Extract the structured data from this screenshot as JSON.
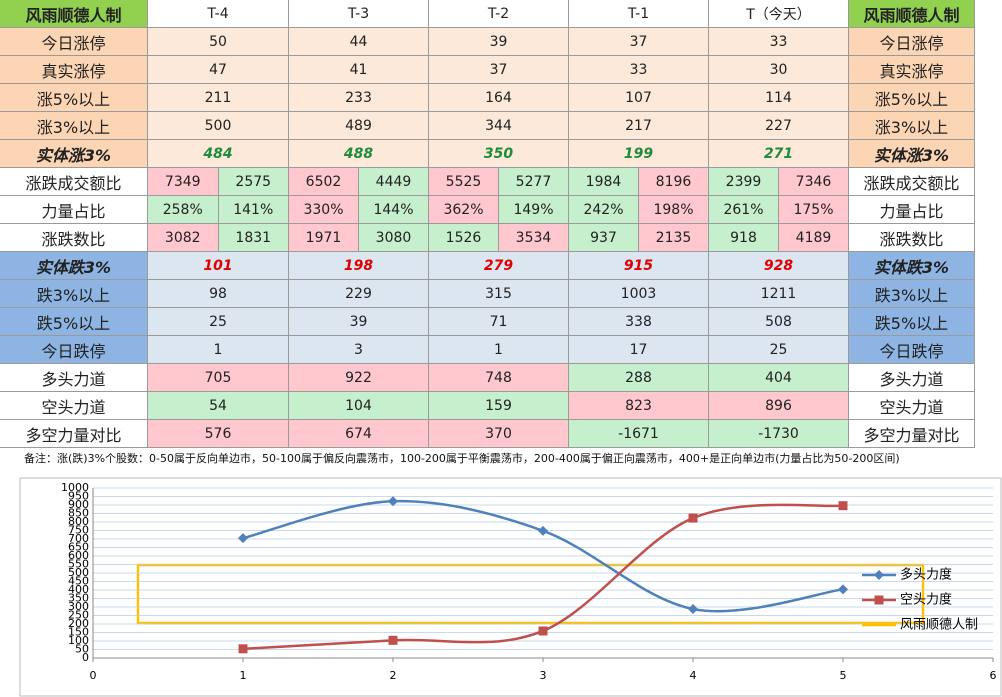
{
  "table": {
    "header": [
      "风雨顺德人制",
      "T-4",
      "T-3",
      "T-2",
      "T-1",
      "T（今天）",
      "风雨顺德人制"
    ],
    "rows": [
      {
        "label": "今日涨停",
        "style": "peach",
        "values": [
          50,
          44,
          39,
          37,
          33
        ]
      },
      {
        "label": "真实涨停",
        "style": "peach",
        "values": [
          47,
          41,
          37,
          33,
          30
        ]
      },
      {
        "label": "涨5%以上",
        "style": "peach",
        "values": [
          211,
          233,
          164,
          107,
          114
        ]
      },
      {
        "label": "涨3%以上",
        "style": "peach",
        "values": [
          500,
          489,
          344,
          217,
          227
        ]
      },
      {
        "label": "实体涨3%",
        "style": "peach-em",
        "text_color": "#1e8c3a",
        "values": [
          484,
          488,
          350,
          199,
          271
        ]
      },
      {
        "label": "涨跌成交额比",
        "style": "plain",
        "values": [
          7349,
          2575,
          6502,
          4449,
          5525,
          5277,
          1984,
          8196,
          2399,
          7346
        ],
        "colors": [
          "pink",
          "green",
          "pink",
          "green",
          "pink",
          "green",
          "green",
          "pink",
          "green",
          "pink"
        ]
      },
      {
        "label": "力量占比",
        "style": "plain",
        "values": [
          "258%",
          "141%",
          "330%",
          "144%",
          "362%",
          "149%",
          "242%",
          "198%",
          "261%",
          "175%"
        ],
        "colors": [
          "green",
          "green",
          "pink",
          "green",
          "pink",
          "green",
          "green",
          "pink",
          "green",
          "pink"
        ]
      },
      {
        "label": "涨跌数比",
        "style": "plain",
        "values": [
          3082,
          1831,
          1971,
          3080,
          1526,
          3534,
          937,
          2135,
          918,
          4189
        ],
        "colors": [
          "pink",
          "green",
          "pink",
          "green",
          "green",
          "pink",
          "green",
          "pink",
          "green",
          "pink"
        ]
      },
      {
        "label": "实体跌3%",
        "style": "blue-em",
        "text_color": "#e00000",
        "values": [
          101,
          198,
          279,
          915,
          928
        ]
      },
      {
        "label": "跌3%以上",
        "style": "blue",
        "values": [
          98,
          229,
          315,
          1003,
          1211
        ]
      },
      {
        "label": "跌5%以上",
        "style": "blue",
        "values": [
          25,
          39,
          71,
          338,
          508
        ]
      },
      {
        "label": "今日跌停",
        "style": "blue",
        "values": [
          1,
          3,
          1,
          17,
          25
        ]
      },
      {
        "label": "多头力道",
        "style": "plain",
        "values": [
          705,
          922,
          748,
          288,
          404
        ],
        "colors": [
          "pink",
          "pink",
          "pink",
          "green",
          "green"
        ]
      },
      {
        "label": "空头力道",
        "style": "plain",
        "values": [
          54,
          104,
          159,
          823,
          896
        ],
        "colors": [
          "green",
          "green",
          "green",
          "pink",
          "pink"
        ]
      },
      {
        "label": "多空力量对比",
        "style": "plain",
        "values": [
          576,
          674,
          370,
          -1671,
          -1730
        ],
        "colors": [
          "pink",
          "pink",
          "pink",
          "green",
          "green"
        ]
      }
    ],
    "note": "备注：涨(跌)3%个股数：0-50属于反向单边市，50-100属于偏反向震荡市，100-200属于平衡震荡市，200-400属于偏正向震荡市，400+是正向单边市(力量占比为50-200区间)"
  },
  "chart_data": {
    "type": "line",
    "x": [
      1,
      2,
      3,
      4,
      5
    ],
    "xlim": [
      0,
      6
    ],
    "xticks": [
      0,
      1,
      2,
      3,
      4,
      5,
      6
    ],
    "ylim": [
      0,
      1000
    ],
    "yticks": [
      0,
      50,
      100,
      150,
      200,
      250,
      300,
      350,
      400,
      450,
      500,
      550,
      600,
      650,
      700,
      750,
      800,
      850,
      900,
      950,
      1000
    ],
    "grid": true,
    "series": [
      {
        "name": "多头力度",
        "color": "#4f81bd",
        "marker": "diamond",
        "values": [
          705,
          922,
          748,
          288,
          404
        ]
      },
      {
        "name": "空头力度",
        "color": "#c0504d",
        "marker": "square",
        "values": [
          54,
          104,
          159,
          823,
          896
        ]
      },
      {
        "name": "风雨顺德人制",
        "color": "#ffc000",
        "marker": "none",
        "values": [
          null,
          null,
          null,
          null,
          null
        ]
      }
    ]
  }
}
